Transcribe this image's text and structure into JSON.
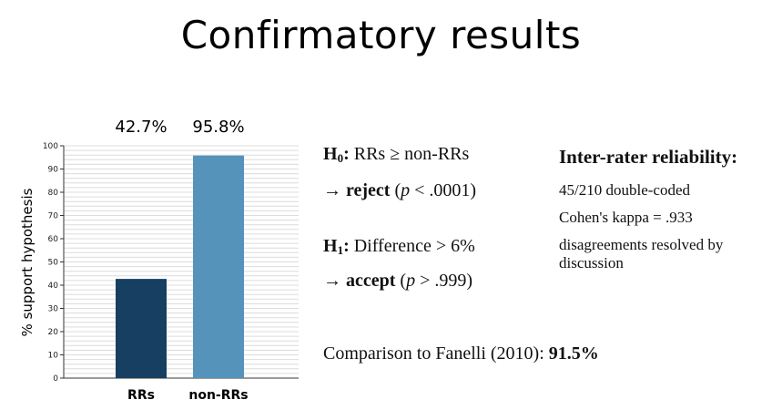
{
  "title": "Confirmatory results",
  "chart_data": {
    "type": "bar",
    "categories": [
      "RRs",
      "non-RRs"
    ],
    "values": [
      42.7,
      95.8
    ],
    "value_labels": [
      "42.7%",
      "95.8%"
    ],
    "colors": [
      "#163f62",
      "#5593bb"
    ],
    "ylabel": "% support hypothesis",
    "ylim": [
      0,
      100
    ],
    "yticks": [
      0,
      10,
      20,
      30,
      40,
      50,
      60,
      70,
      80,
      90,
      100
    ],
    "grid": true
  },
  "hypotheses": {
    "h0": {
      "label": "H",
      "sub": "0",
      "text": ": RRs ≥ non-RRs",
      "arrow": "→ ",
      "verdict": "reject",
      "pre_p": " (",
      "p": "p",
      "post_p": " < .0001)"
    },
    "h1": {
      "label": "H",
      "sub": "1",
      "text": ": Difference > 6%",
      "arrow": "→ ",
      "verdict": "accept",
      "pre_p": " (",
      "p": "p",
      "post_p": " > .999)"
    }
  },
  "comparison": {
    "text": "Comparison to Fanelli (2010): ",
    "value": "91.5%"
  },
  "irr": {
    "title": "Inter-rater reliability:",
    "lines": [
      "45/210 double-coded",
      "Cohen's kappa = .933",
      "disagreements resolved by",
      "discussion"
    ]
  }
}
